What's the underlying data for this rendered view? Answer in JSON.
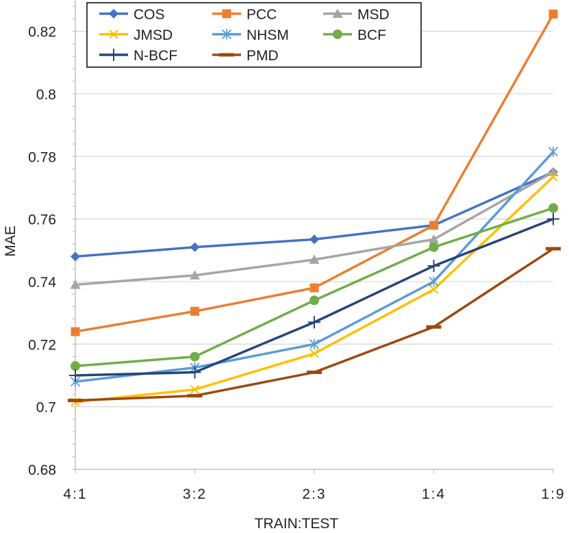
{
  "chart_data": {
    "type": "line",
    "title": "",
    "xlabel": "TRAIN:TEST",
    "ylabel": "MAE",
    "categories": [
      "4:1",
      "3:2",
      "2:3",
      "1:4",
      "1:9"
    ],
    "ylim": [
      0.68,
      0.83
    ],
    "yticks": [
      0.68,
      0.7,
      0.72,
      0.74,
      0.76,
      0.78,
      0.8,
      0.82
    ],
    "ytick_labels": [
      "0.68",
      "0.7",
      "0.72",
      "0.74",
      "0.76",
      "0.78",
      "0.8",
      "0.82"
    ],
    "grid": "horizontal",
    "legend_position": "top-left",
    "series": [
      {
        "name": "COS",
        "color": "#4472C4",
        "marker": "diamond",
        "values": [
          0.748,
          0.751,
          0.7535,
          0.758,
          0.775
        ]
      },
      {
        "name": "PCC",
        "color": "#ED7D31",
        "marker": "square",
        "values": [
          0.724,
          0.7305,
          0.738,
          0.758,
          0.8255
        ]
      },
      {
        "name": "MSD",
        "color": "#A5A5A5",
        "marker": "triangle",
        "values": [
          0.739,
          0.742,
          0.747,
          0.7535,
          0.775
        ]
      },
      {
        "name": "JMSD",
        "color": "#FFC000",
        "marker": "x",
        "values": [
          0.7015,
          0.7055,
          0.717,
          0.7375,
          0.7735
        ]
      },
      {
        "name": "NHSM",
        "color": "#5B9BD5",
        "marker": "star",
        "values": [
          0.708,
          0.7125,
          0.72,
          0.74,
          0.7815
        ]
      },
      {
        "name": "BCF",
        "color": "#70AD47",
        "marker": "circle",
        "values": [
          0.713,
          0.716,
          0.734,
          0.751,
          0.7635
        ]
      },
      {
        "name": "N-BCF",
        "color": "#264478",
        "marker": "plus",
        "values": [
          0.71,
          0.711,
          0.727,
          0.745,
          0.76
        ]
      },
      {
        "name": "PMD",
        "color": "#9E480E",
        "marker": "dash",
        "values": [
          0.702,
          0.7035,
          0.711,
          0.7255,
          0.7505
        ]
      }
    ]
  }
}
